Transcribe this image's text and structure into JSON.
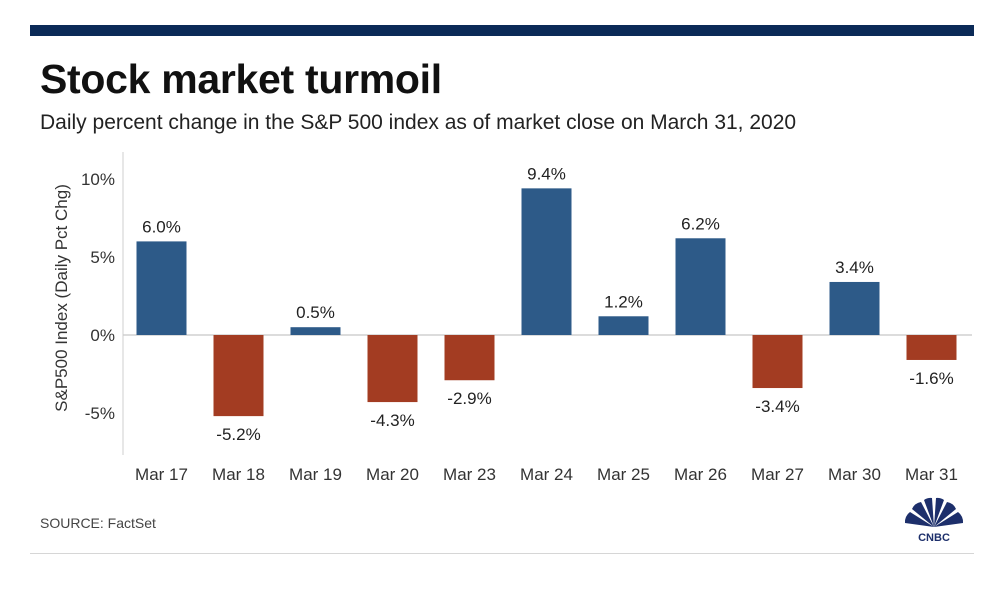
{
  "header": {
    "title": "Stock market turmoil",
    "subtitle": "Daily percent change in the S&P 500 index as of market close on March 31, 2020"
  },
  "footer": {
    "source": "SOURCE: FactSet",
    "logo_text": "CNBC"
  },
  "colors": {
    "positive": "#2d5a88",
    "negative": "#a33c22",
    "top_bar": "#0b2a57"
  },
  "chart_data": {
    "type": "bar",
    "categories": [
      "Mar 17",
      "Mar 18",
      "Mar 19",
      "Mar 20",
      "Mar 23",
      "Mar 24",
      "Mar 25",
      "Mar 26",
      "Mar 27",
      "Mar 30",
      "Mar 31"
    ],
    "values": [
      6.0,
      -5.2,
      0.5,
      -4.3,
      -2.9,
      9.4,
      1.2,
      6.2,
      -3.4,
      3.4,
      -1.6
    ],
    "value_labels": [
      "6.0%",
      "-5.2%",
      "0.5%",
      "-4.3%",
      "-2.9%",
      "9.4%",
      "1.2%",
      "6.2%",
      "-3.4%",
      "3.4%",
      "-1.6%"
    ],
    "ylabel": "S&P500 Index (Daily Pct Chg)",
    "yticks": [
      10,
      5,
      0,
      -5
    ],
    "ytick_labels": [
      "10%",
      "5%",
      "0%",
      "-5%"
    ],
    "ylim": [
      -7.5,
      11.5
    ],
    "grid": false,
    "legend": "none"
  }
}
